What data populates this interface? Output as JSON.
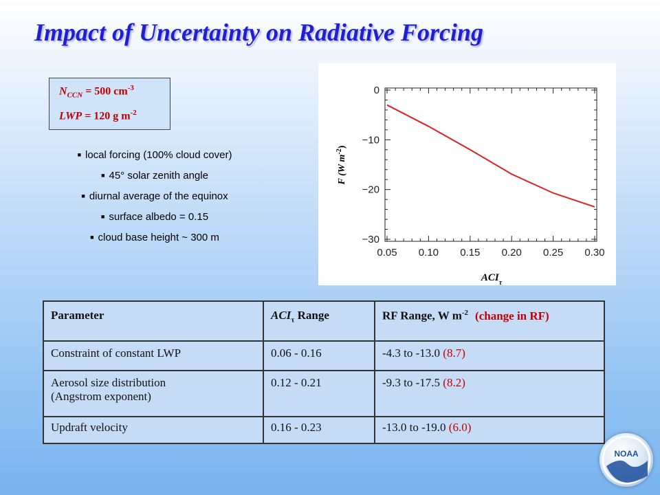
{
  "slide": {
    "title": "Impact of Uncertainty on Radiative Forcing"
  },
  "params_box": {
    "nccn_label": "N",
    "nccn_sub": "CCN",
    "nccn_value": " = 500 cm",
    "nccn_exp": "-3",
    "lwp_label": "LWP",
    "lwp_value": " = 120 g m",
    "lwp_exp": "-2"
  },
  "bullets": [
    "local forcing (100% cloud cover)",
    "45° solar zenith angle",
    "diurnal average of the equinox",
    "surface albedo = 0.15",
    "cloud base height ~ 300 m"
  ],
  "chart_data": {
    "type": "line",
    "title": "",
    "xlabel": "ACI",
    "xlabel_sub": "τ",
    "ylabel": "F (W m",
    "ylabel_exp": "-2",
    "ylabel_close": ")",
    "xlim": [
      0.05,
      0.3
    ],
    "ylim": [
      -30,
      0
    ],
    "xticks": [
      0.05,
      0.1,
      0.15,
      0.2,
      0.25,
      0.3
    ],
    "xtick_labels": [
      "0.05",
      "0.10",
      "0.15",
      "0.20",
      "0.25",
      "0.30"
    ],
    "yticks": [
      0,
      -10,
      -20,
      -30
    ],
    "ytick_labels": [
      "0",
      "−10",
      "−20",
      "−30"
    ],
    "grid": false,
    "series": [
      {
        "color": "#e02020",
        "x": [
          0.05,
          0.1,
          0.15,
          0.2,
          0.25,
          0.3
        ],
        "y": [
          -3.0,
          -7.3,
          -12.0,
          -16.9,
          -20.7,
          -23.5
        ]
      }
    ]
  },
  "table": {
    "headers": {
      "parameter": "Parameter",
      "aci_label": "ACI",
      "aci_sub": "τ",
      "aci_range": " Range",
      "rf_label": "RF Range, W m",
      "rf_exp": "-2",
      "rf_change": "(change in RF)"
    },
    "rows": [
      {
        "parameter": "Constraint of constant LWP",
        "aci_range": "0.06 - 0.16",
        "rf_range": "-4.3 to -13.0",
        "change": "(8.7)"
      },
      {
        "parameter": "Aerosol size distribution",
        "parameter_line2": "(Angstrom exponent)",
        "aci_range": "0.12 - 0.21",
        "rf_range": "-9.3 to -17.5",
        "change": "(8.2)"
      },
      {
        "parameter": "Updraft velocity",
        "aci_range": "0.16 - 0.23",
        "rf_range": "-13.0 to -19.0",
        "change": "(6.0)"
      }
    ]
  },
  "logo": {
    "text": "NOAA"
  }
}
